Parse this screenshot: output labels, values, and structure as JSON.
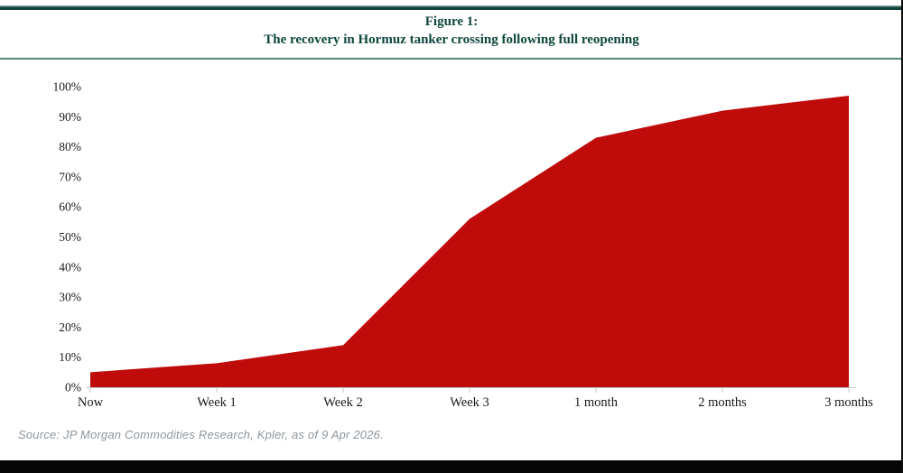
{
  "figure": {
    "title": "Figure 1:",
    "subtitle": "The recovery in Hormuz tanker crossing following full reopening",
    "source": "Source: JP Morgan Commodities Research, Kpler, as of 9 Apr 2026."
  },
  "colors": {
    "title_green": "#0d473c",
    "rule_dark_green": "#0d423b",
    "rule_light_green": "#57887b",
    "area_red": "#c00b0b",
    "axis_gray": "#c4c7c9",
    "source_gray": "#8d969d",
    "bottom_bar_black": "#050505"
  },
  "chart_data": {
    "type": "area",
    "title": "Figure 1: The recovery in Hormuz tanker crossing following full reopening",
    "categories": [
      "Now",
      "Week 1",
      "Week 2",
      "Week 3",
      "1 month",
      "2 months",
      "3 months"
    ],
    "values": [
      5,
      8,
      14,
      56,
      83,
      92,
      97
    ],
    "xlabel": "",
    "ylabel": "",
    "ylim": [
      0,
      100
    ],
    "yticks": [
      "0%",
      "10%",
      "20%",
      "30%",
      "40%",
      "50%",
      "60%",
      "70%",
      "80%",
      "90%",
      "100%"
    ],
    "ytick_values": [
      0,
      10,
      20,
      30,
      40,
      50,
      60,
      70,
      80,
      90,
      100
    ],
    "grid": false,
    "legend": "none",
    "fill_color": "#c00b0b",
    "axis_color": "#c4c7c9"
  }
}
